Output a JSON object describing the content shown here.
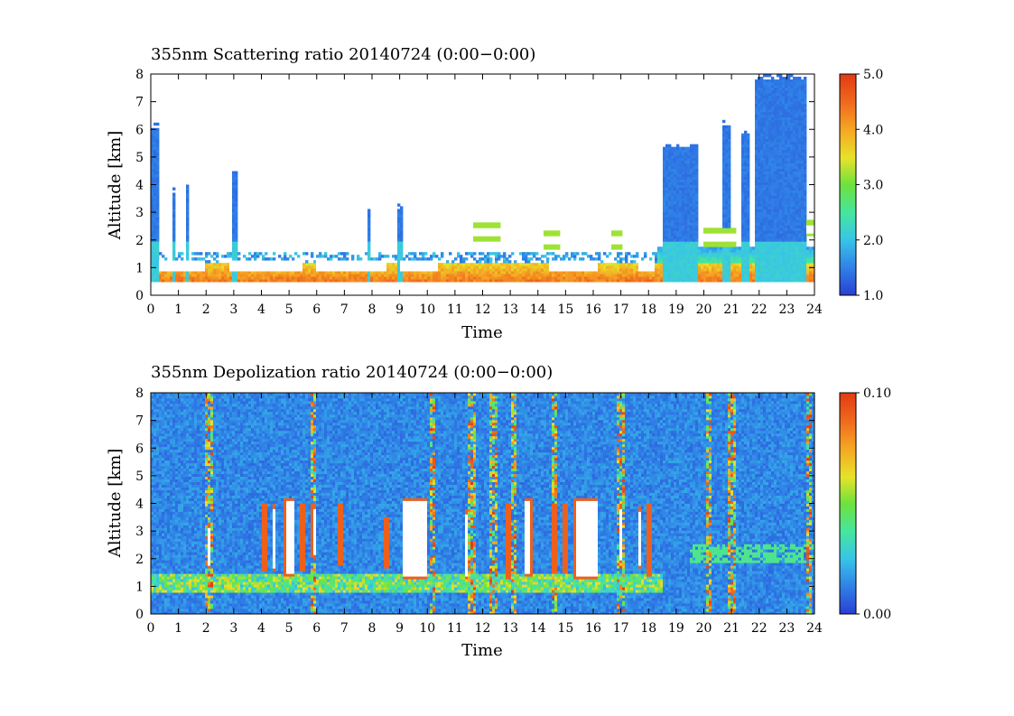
{
  "chart_data": [
    {
      "type": "heatmap",
      "title": "355nm Scattering ratio  20140724 (0:00−0:00)",
      "xlabel": "Time",
      "ylabel": "Altitude [km]",
      "xlim": [
        0,
        24
      ],
      "ylim": [
        0,
        8
      ],
      "x_ticks": [
        "0",
        "1",
        "2",
        "3",
        "4",
        "5",
        "6",
        "7",
        "8",
        "9",
        "10",
        "11",
        "12",
        "13",
        "14",
        "15",
        "16",
        "17",
        "18",
        "19",
        "20",
        "21",
        "22",
        "23",
        "24"
      ],
      "y_ticks": [
        "0",
        "1",
        "2",
        "3",
        "4",
        "5",
        "6",
        "7",
        "8"
      ],
      "colorbar": {
        "min": 1.0,
        "max": 5.0,
        "tick_labels": [
          "1.0",
          "2.0",
          "3.0",
          "4.0",
          "5.0"
        ],
        "tick_values": [
          1.0,
          2.0,
          3.0,
          4.0,
          5.0
        ],
        "colormap": [
          "#2a3fd4",
          "#2f7fe6",
          "#38c4e8",
          "#45e6a0",
          "#6ee23c",
          "#e8e22a",
          "#f5a623",
          "#f06a1e",
          "#e23a12"
        ]
      },
      "features": {
        "boundary_layer": {
          "time_range": [
            0,
            24
          ],
          "top_km": 1.2,
          "base_value": 4.2
        },
        "low_cloud_segments": [
          [
            0.3,
            2.0
          ],
          [
            2.8,
            5.5
          ],
          [
            6.0,
            8.5
          ],
          [
            9.0,
            10.4
          ],
          [
            14.4,
            16.2
          ],
          [
            17.6,
            18.2
          ]
        ],
        "mid_cloud_features": [
          [
            11.7,
            12.6,
            2.3
          ],
          [
            14.2,
            14.8,
            2.0
          ],
          [
            16.7,
            17.0,
            2.0
          ],
          [
            20.0,
            21.2,
            2.1
          ],
          [
            23.7,
            24.0,
            2.4
          ]
        ],
        "high_signal_columns": [
          [
            0.0,
            0.3,
            6.2
          ],
          [
            0.8,
            0.9,
            3.9
          ],
          [
            1.3,
            1.4,
            4.1
          ],
          [
            2.9,
            3.1,
            4.6
          ],
          [
            7.8,
            7.9,
            3.2
          ],
          [
            8.9,
            9.1,
            3.3
          ],
          [
            18.5,
            19.8,
            5.5
          ],
          [
            20.7,
            21.0,
            6.3
          ],
          [
            21.4,
            21.6,
            6.0
          ],
          [
            21.8,
            23.7,
            8.0
          ]
        ]
      }
    },
    {
      "type": "heatmap",
      "title": "355nm Depolization ratio  20140724 (0:00−0:00)",
      "xlabel": "Time",
      "ylabel": "Altitude [km]",
      "xlim": [
        0,
        24
      ],
      "ylim": [
        0,
        8
      ],
      "x_ticks": [
        "0",
        "1",
        "2",
        "3",
        "4",
        "5",
        "6",
        "7",
        "8",
        "9",
        "10",
        "11",
        "12",
        "13",
        "14",
        "15",
        "16",
        "17",
        "18",
        "19",
        "20",
        "21",
        "22",
        "23",
        "24"
      ],
      "y_ticks": [
        "0",
        "1",
        "2",
        "3",
        "4",
        "5",
        "6",
        "7",
        "8"
      ],
      "colorbar": {
        "min": 0.0,
        "max": 0.1,
        "tick_labels": [
          "0.00",
          "0.10"
        ],
        "tick_values": [
          0.0,
          0.1
        ],
        "colormap": [
          "#2a3fd4",
          "#2f7fe6",
          "#38c4e8",
          "#45e6a0",
          "#6ee23c",
          "#e8e22a",
          "#f5a623",
          "#f06a1e",
          "#e23a12"
        ]
      },
      "features": {
        "background_value": 0.008,
        "saturated_columns": [
          [
            2.05,
            2.2,
            1.7,
            3.3
          ],
          [
            4.05,
            4.2,
            1.6,
            4.0
          ],
          [
            4.4,
            4.55,
            1.6,
            4.0
          ],
          [
            4.8,
            5.2,
            1.4,
            4.2
          ],
          [
            5.4,
            5.55,
            1.6,
            4.0
          ],
          [
            5.8,
            6.0,
            2.0,
            4.0
          ],
          [
            6.8,
            6.95,
            1.8,
            4.0
          ],
          [
            8.45,
            8.6,
            1.7,
            3.5
          ],
          [
            9.1,
            10.0,
            1.3,
            4.2
          ],
          [
            11.35,
            11.5,
            1.3,
            3.8
          ],
          [
            12.85,
            13.0,
            1.3,
            4.0
          ],
          [
            13.5,
            13.8,
            1.4,
            4.2
          ],
          [
            14.5,
            14.65,
            1.5,
            4.0
          ],
          [
            14.9,
            15.05,
            1.5,
            4.0
          ],
          [
            15.3,
            16.2,
            1.3,
            4.2
          ],
          [
            16.9,
            17.05,
            1.9,
            4.0
          ],
          [
            17.6,
            17.75,
            1.7,
            3.9
          ],
          [
            17.95,
            18.1,
            1.4,
            4.0
          ]
        ],
        "streak_columns": [
          [
            2.1,
            8.0
          ],
          [
            5.9,
            8.0
          ],
          [
            10.2,
            8.0
          ],
          [
            11.6,
            8.0
          ],
          [
            12.4,
            8.0
          ],
          [
            13.1,
            8.0
          ],
          [
            14.6,
            8.0
          ],
          [
            17.0,
            8.0
          ],
          [
            20.2,
            8.0
          ],
          [
            21.0,
            8.0
          ],
          [
            23.8,
            8.0
          ]
        ],
        "low_aerosol_band": {
          "time_range": [
            0,
            18.5
          ],
          "altitude_km": [
            0.8,
            1.5
          ],
          "value": 0.045
        }
      }
    }
  ]
}
